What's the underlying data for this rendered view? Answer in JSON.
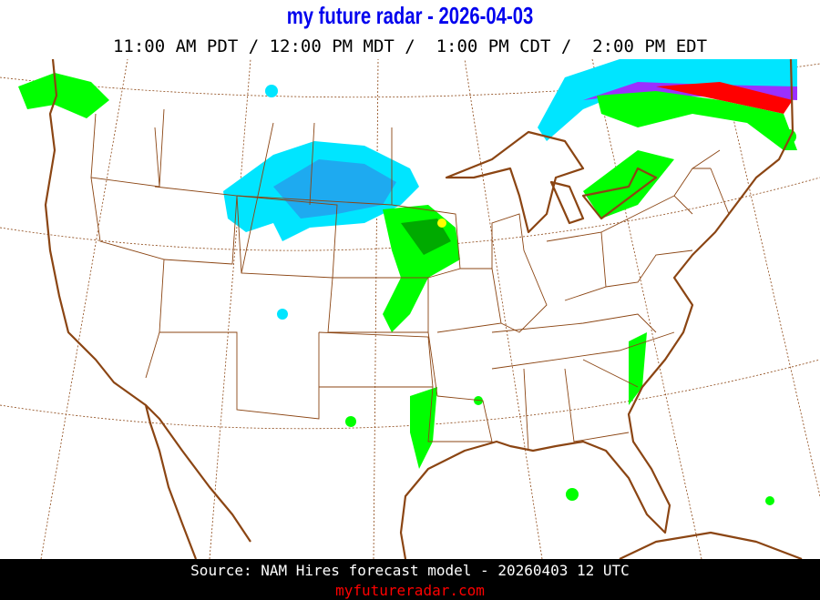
{
  "header": {
    "title": "my future radar - 2026-04-03",
    "subtitle": "11:00 AM PDT / 12:00 PM MDT /  1:00 PM CDT /  2:00 PM EDT"
  },
  "map": {
    "region": "Continental United States",
    "colors": {
      "coastline": "#8b4513",
      "state_lines": "#8b4513",
      "graticule": "#8b4513",
      "snow_light": "#00e5ff",
      "snow_heavy": "#1eaaf0",
      "mix": "#9b30ff",
      "rain_light": "#00ff00",
      "rain_moderate": "#00aa00",
      "rain_heavy": "#ffff00",
      "freezing": "#ff0000"
    }
  },
  "footer": {
    "source": "Source: NAM Hires forecast model - 20260403 12 UTC",
    "site": "myfutureradar.com",
    "source_color": "#ffffff",
    "site_color": "#ff0000"
  }
}
